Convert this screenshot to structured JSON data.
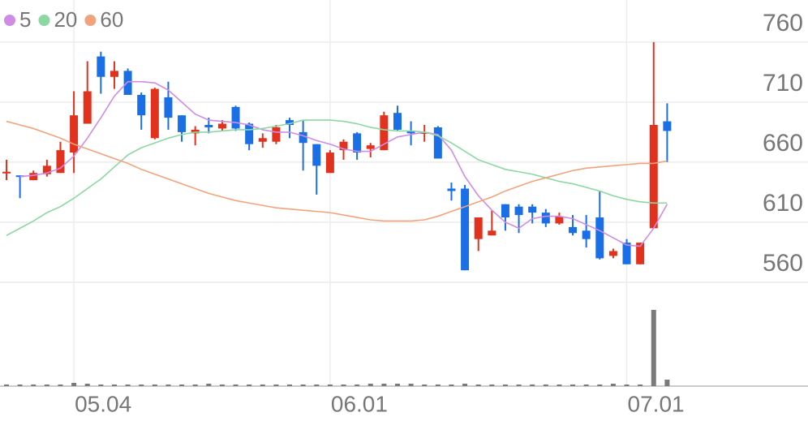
{
  "chart_data": {
    "type": "candlestick",
    "categories": [
      null,
      null,
      null,
      null,
      null,
      "05.04",
      null,
      null,
      null,
      null,
      null,
      null,
      null,
      null,
      null,
      null,
      null,
      null,
      null,
      null,
      null,
      null,
      null,
      null,
      "06.01",
      null,
      null,
      null,
      null,
      null,
      null,
      null,
      null,
      null,
      null,
      null,
      null,
      null,
      null,
      null,
      null,
      null,
      null,
      null,
      null,
      null,
      "07.01",
      null,
      null,
      null
    ],
    "open": [
      651,
      649,
      645,
      650,
      651,
      668,
      692,
      748,
      731,
      736,
      716,
      680,
      714,
      699,
      684,
      691,
      688,
      706,
      692,
      677,
      677,
      695,
      685,
      675,
      651,
      670,
      684,
      671,
      670,
      701,
      686,
      684,
      689,
      638,
      638,
      596,
      599,
      625,
      623,
      623,
      618,
      609,
      606,
      603,
      614,
      582,
      593,
      575,
      605,
      694
    ],
    "high": [
      662,
      649,
      653,
      662,
      677,
      719,
      744,
      752,
      744,
      738,
      718,
      722,
      727,
      699,
      690,
      697,
      695,
      707,
      693,
      684,
      691,
      697,
      695,
      675,
      670,
      679,
      685,
      676,
      702,
      707,
      694,
      691,
      690,
      643,
      641,
      614,
      620,
      625,
      625,
      625,
      621,
      618,
      616,
      616,
      636,
      588,
      596,
      593,
      760,
      709
    ],
    "low": [
      645,
      630,
      645,
      648,
      651,
      651,
      692,
      717,
      721,
      716,
      687,
      679,
      687,
      677,
      674,
      684,
      686,
      686,
      670,
      672,
      675,
      680,
      653,
      633,
      651,
      662,
      662,
      664,
      670,
      686,
      674,
      677,
      663,
      628,
      570,
      586,
      599,
      603,
      601,
      609,
      606,
      608,
      599,
      589,
      579,
      580,
      575,
      575,
      605,
      660
    ],
    "close": [
      652,
      648,
      651,
      657,
      670,
      699,
      719,
      731,
      736,
      716,
      699,
      721,
      697,
      685,
      687,
      689,
      692,
      688,
      675,
      680,
      689,
      691,
      676,
      657,
      668,
      677,
      668,
      674,
      699,
      687,
      684,
      685,
      663,
      636,
      570,
      614,
      603,
      614,
      616,
      618,
      609,
      615,
      601,
      596,
      580,
      586,
      575,
      593,
      691,
      686
    ],
    "up_color": "#e2311d",
    "down_color": "#1b6fe6",
    "ylim": [
      560,
      795
    ],
    "yticks": [
      560,
      610,
      660,
      710,
      760
    ],
    "grid": true,
    "series": [
      {
        "name": "5",
        "color": "#cf8ce6",
        "values": [
          null,
          648,
          649,
          651,
          655,
          665,
          680,
          697,
          715,
          727,
          727,
          726,
          720,
          710,
          700,
          695,
          694,
          693,
          691,
          687,
          685,
          685,
          682,
          678,
          675,
          671,
          669,
          669,
          675,
          681,
          683,
          685,
          683,
          670,
          648,
          632,
          620,
          610,
          605,
          613,
          615,
          615,
          613,
          608,
          603,
          597,
          591,
          590,
          605,
          625
        ]
      },
      {
        "name": "20",
        "color": "#8bd8a2",
        "values": [
          599,
          605,
          611,
          618,
          623,
          630,
          638,
          646,
          656,
          666,
          672,
          676,
          680,
          683,
          685,
          685,
          686,
          687,
          687,
          688,
          690,
          692,
          695,
          695,
          695,
          694,
          692,
          689,
          687,
          686,
          686,
          685,
          682,
          676,
          669,
          662,
          658,
          654,
          652,
          650,
          647,
          644,
          642,
          639,
          636,
          632,
          629,
          627,
          626,
          626
        ]
      },
      {
        "name": "60",
        "color": "#f2a37c",
        "values": [
          694,
          691,
          688,
          684,
          680,
          675,
          671,
          667,
          663,
          659,
          654,
          650,
          646,
          642,
          638,
          634,
          631,
          628,
          626,
          624,
          622,
          621,
          620,
          619,
          618,
          616,
          614,
          612,
          611,
          611,
          611,
          612,
          615,
          619,
          623,
          627,
          631,
          636,
          640,
          644,
          647,
          650,
          653,
          655,
          656,
          657,
          658,
          659,
          659,
          661
        ]
      }
    ],
    "volume": {
      "color": "#7a7a7a",
      "ylim": [
        0,
        128
      ],
      "values": [
        2,
        2,
        2,
        2,
        2,
        4,
        3,
        2,
        2,
        2,
        2,
        2,
        2,
        2,
        2,
        3,
        2,
        2,
        2,
        2,
        2,
        2,
        2,
        2,
        2,
        2,
        2,
        3,
        3,
        3,
        3,
        2,
        2,
        2,
        3,
        2,
        2,
        2,
        2,
        2,
        2,
        2,
        2,
        2,
        2,
        3,
        2,
        2,
        94,
        8
      ]
    }
  }
}
